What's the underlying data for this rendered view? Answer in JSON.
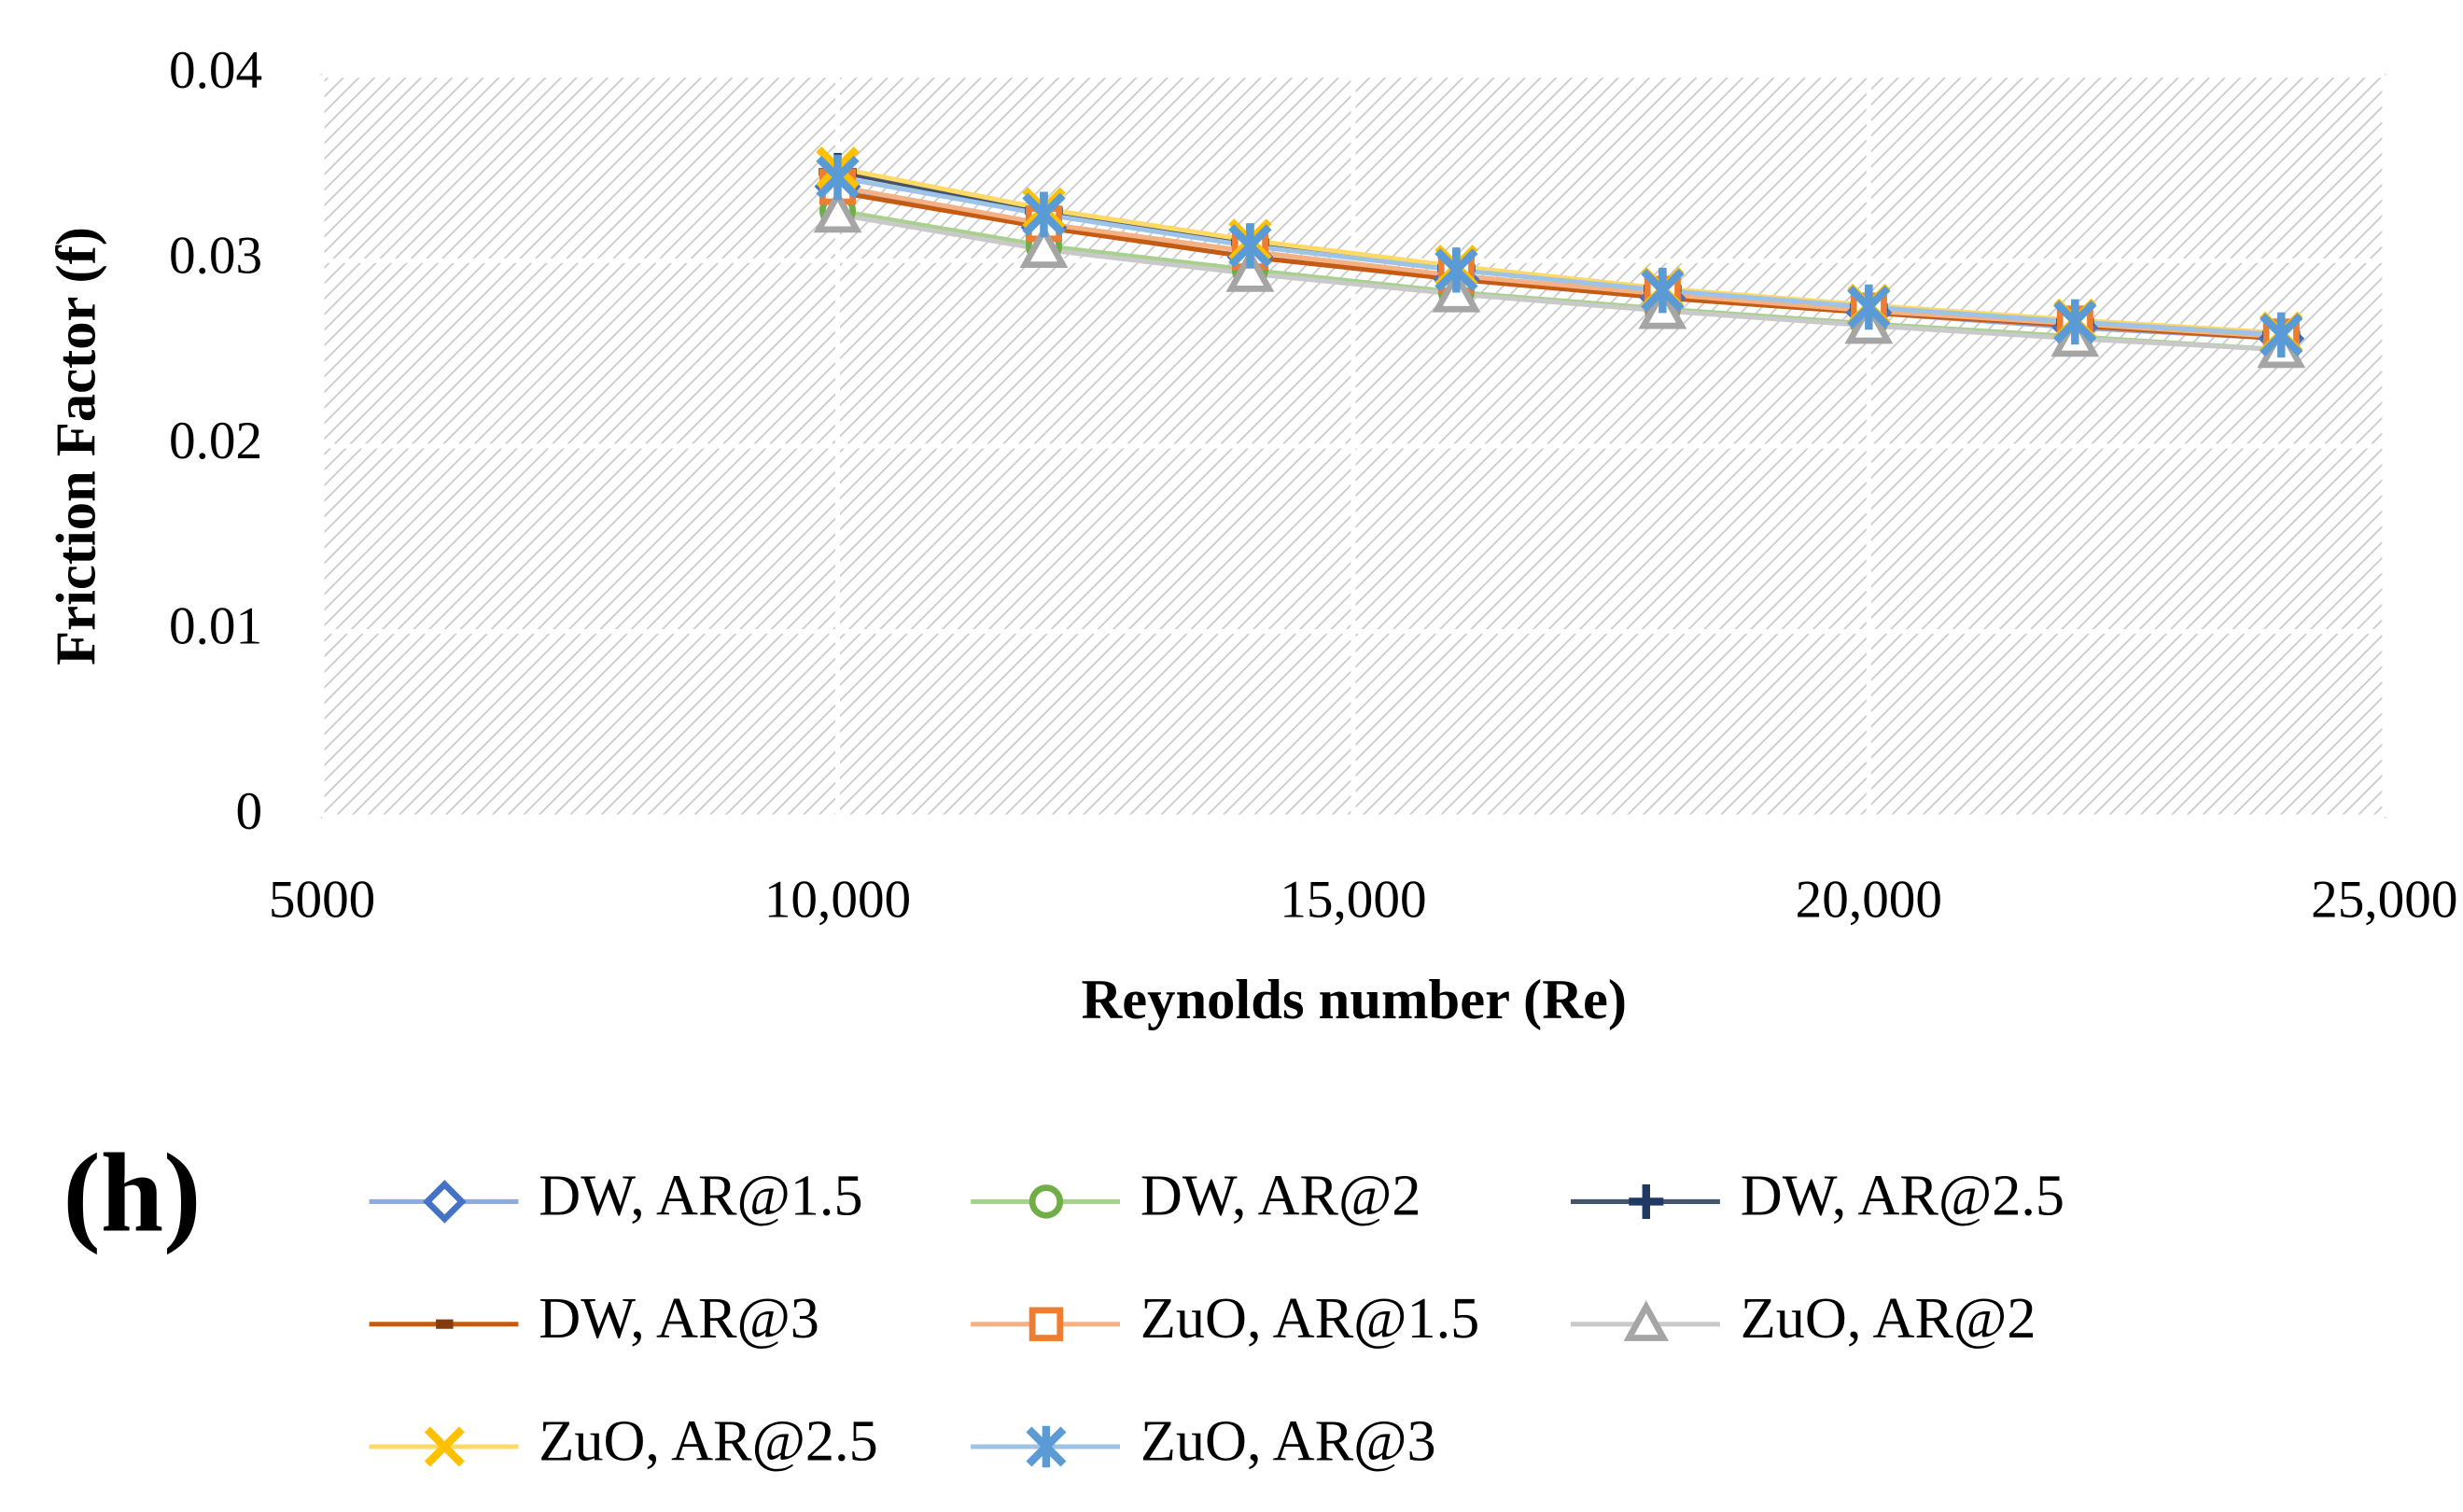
{
  "chart_data": {
    "type": "line",
    "annotation": "(h)",
    "x_label": "Reynolds number (Re)",
    "y_label": "Friction Factor (f)",
    "x": [
      10000,
      12000,
      14000,
      16000,
      18000,
      20000,
      22000,
      24000
    ],
    "xlim": [
      5000,
      25000
    ],
    "xticks": [
      5000,
      {
        "value": 10000,
        "label": "10,000"
      },
      {
        "value": 15000,
        "label": "15,000"
      },
      {
        "value": 20000,
        "label": "20,000"
      },
      {
        "value": 25000,
        "label": "25,000"
      }
    ],
    "ylim": [
      0,
      0.04
    ],
    "yticks": [
      0,
      0.01,
      0.02,
      0.03,
      0.04
    ],
    "grid": true,
    "series": [
      {
        "name": "DW, AR@1.5",
        "color": "#4472c4",
        "line_color": "#8faadc",
        "marker": "diamond",
        "values": [
          0.034,
          0.0318,
          0.0302,
          0.029,
          0.028,
          0.0272,
          0.0264,
          0.0258
        ]
      },
      {
        "name": "DW, AR@2",
        "color": "#70ad47",
        "line_color": "#a9d18e",
        "marker": "circle",
        "values": [
          0.0327,
          0.0308,
          0.0295,
          0.0283,
          0.0274,
          0.0266,
          0.0259,
          0.0252
        ]
      },
      {
        "name": "DW, AR@2.5",
        "color": "#203864",
        "line_color": "#44546a",
        "marker": "plus",
        "values": [
          0.0348,
          0.0327,
          0.031,
          0.0296,
          0.0285,
          0.0275,
          0.0267,
          0.026
        ]
      },
      {
        "name": "DW, AR@3",
        "color": "#843c0c",
        "line_color": "#c55a11",
        "marker": "dash",
        "values": [
          0.0337,
          0.0318,
          0.0302,
          0.029,
          0.028,
          0.0272,
          0.0265,
          0.0258
        ]
      },
      {
        "name": "ZuO, AR@1.5",
        "color": "#ed7d31",
        "line_color": "#f4b183",
        "marker": "square",
        "values": [
          0.034,
          0.032,
          0.0305,
          0.0292,
          0.0282,
          0.0273,
          0.0266,
          0.0259
        ]
      },
      {
        "name": "ZuO, AR@2",
        "color": "#a5a5a5",
        "line_color": "#c9c9c9",
        "marker": "triangle",
        "values": [
          0.0325,
          0.0306,
          0.0293,
          0.0282,
          0.0273,
          0.0265,
          0.0258,
          0.0252
        ]
      },
      {
        "name": "ZuO, AR@2.5",
        "color": "#ffc000",
        "line_color": "#ffd966",
        "marker": "x",
        "values": [
          0.035,
          0.0328,
          0.0311,
          0.0297,
          0.0285,
          0.0276,
          0.0268,
          0.0261
        ]
      },
      {
        "name": "ZuO, AR@3",
        "color": "#5b9bd5",
        "line_color": "#9dc3e6",
        "marker": "asterisk",
        "values": [
          0.0345,
          0.0325,
          0.0308,
          0.0295,
          0.0284,
          0.0275,
          0.0267,
          0.026
        ]
      }
    ]
  }
}
